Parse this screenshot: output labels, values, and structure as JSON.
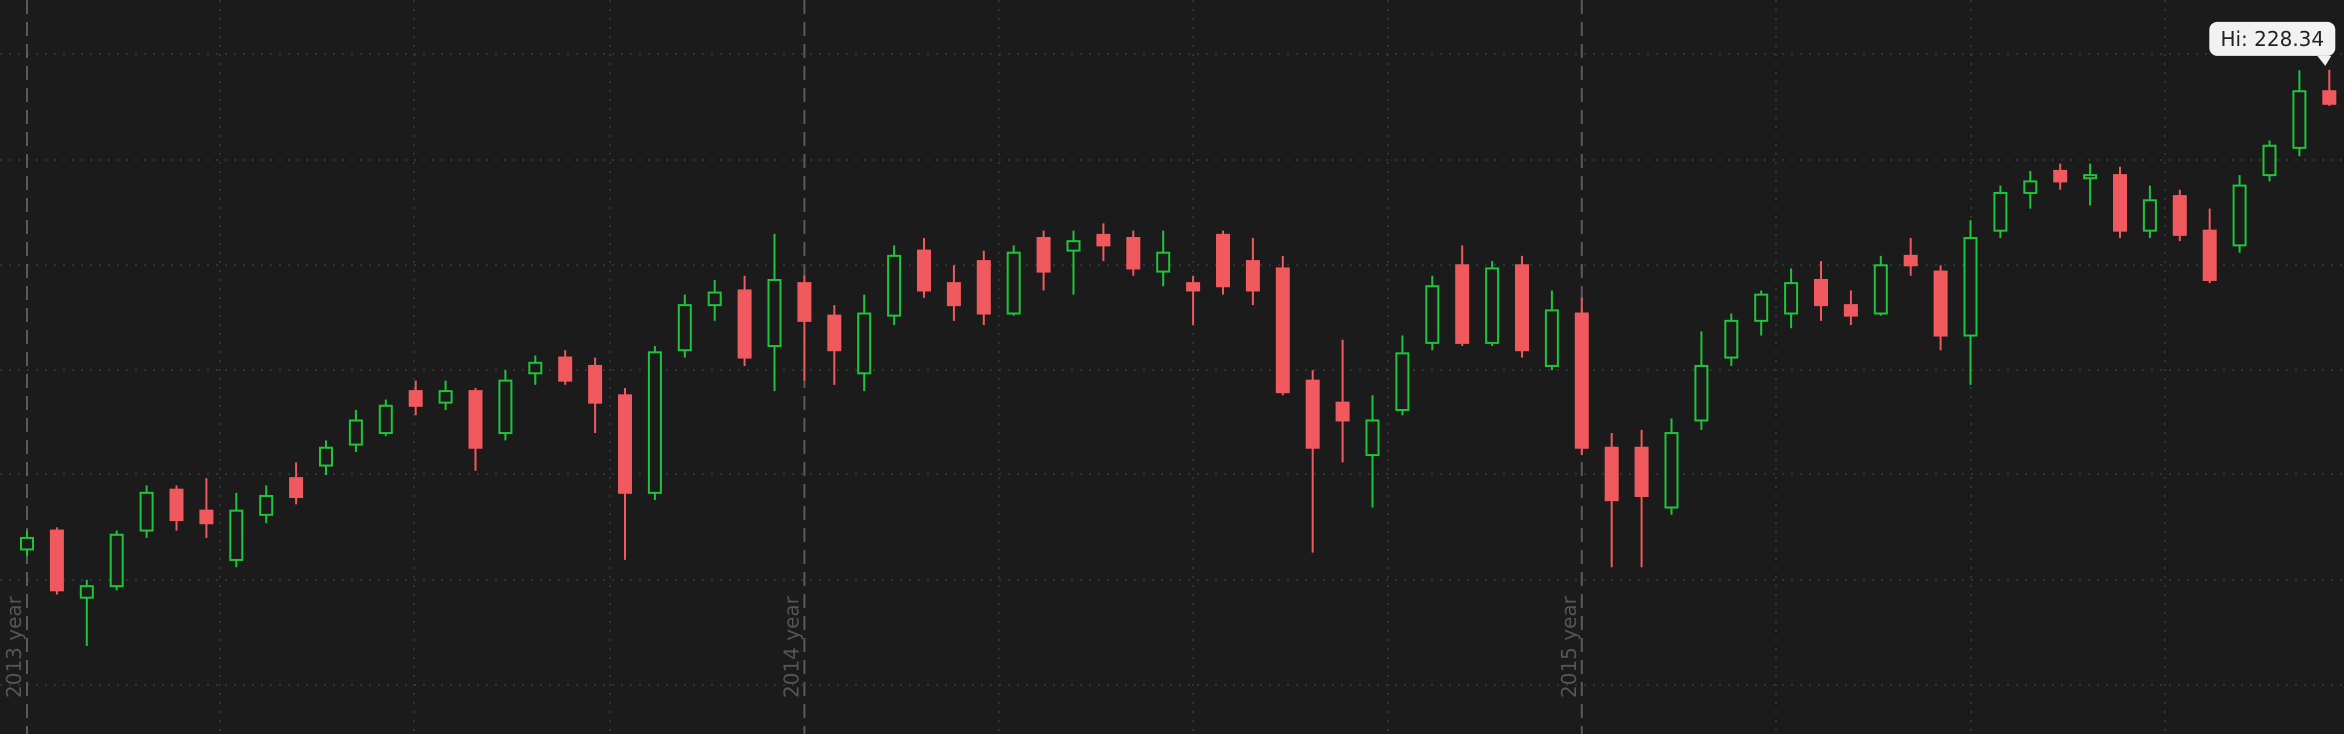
{
  "chart_data": {
    "type": "candlestick",
    "categories": [
      "2013 year",
      null,
      null,
      null,
      null,
      null,
      null,
      null,
      null,
      null,
      null,
      null,
      null,
      null,
      null,
      null,
      null,
      null,
      null,
      null,
      null,
      null,
      null,
      null,
      null,
      null,
      "2014 year",
      null,
      null,
      null,
      null,
      null,
      null,
      null,
      null,
      null,
      null,
      null,
      null,
      null,
      null,
      null,
      null,
      null,
      null,
      null,
      null,
      null,
      null,
      null,
      null,
      null,
      "2015 year",
      null,
      null,
      null,
      null,
      null,
      null,
      null,
      null,
      null,
      null,
      null,
      null,
      null,
      null,
      null,
      null,
      null,
      null,
      null,
      null,
      null,
      null,
      null,
      null,
      null
    ],
    "open": [
      182.6,
      184.4,
      178.0,
      179.1,
      184.4,
      188.3,
      186.3,
      181.6,
      185.9,
      189.4,
      190.6,
      192.6,
      193.7,
      197.7,
      196.6,
      197.7,
      193.7,
      199.4,
      200.9,
      200.1,
      197.3,
      188.0,
      201.6,
      205.9,
      207.3,
      202.0,
      208.0,
      204.9,
      199.4,
      204.9,
      211.1,
      208.0,
      210.1,
      205.1,
      212.3,
      211.1,
      212.6,
      212.3,
      209.1,
      208.0,
      212.6,
      210.1,
      209.4,
      198.7,
      196.6,
      191.6,
      195.9,
      202.3,
      209.7,
      202.3,
      209.7,
      200.1,
      205.1,
      192.3,
      192.3,
      186.6,
      194.9,
      200.9,
      204.4,
      205.1,
      208.3,
      205.9,
      205.1,
      210.6,
      209.1,
      203.0,
      213.0,
      216.6,
      218.7,
      218.0,
      218.3,
      213.0,
      216.3,
      213.0,
      211.6,
      218.3,
      220.9,
      226.3
    ],
    "high": [
      184.4,
      184.7,
      179.7,
      184.4,
      188.7,
      188.7,
      189.4,
      188.0,
      188.7,
      190.9,
      193.0,
      195.9,
      196.9,
      198.7,
      198.7,
      198.0,
      199.7,
      201.1,
      201.6,
      200.9,
      198.0,
      202.0,
      206.9,
      208.3,
      208.7,
      212.7,
      208.7,
      205.9,
      206.9,
      211.6,
      212.3,
      209.7,
      211.1,
      211.6,
      213.0,
      213.0,
      213.7,
      213.0,
      213.0,
      208.7,
      213.0,
      212.3,
      210.6,
      199.7,
      202.6,
      197.3,
      203.0,
      208.7,
      211.6,
      210.1,
      210.6,
      207.3,
      206.6,
      193.7,
      194.0,
      195.1,
      203.4,
      205.1,
      207.3,
      209.4,
      210.1,
      207.3,
      210.6,
      212.3,
      209.7,
      214.0,
      217.3,
      218.7,
      219.4,
      219.4,
      219.1,
      217.3,
      216.9,
      215.1,
      218.3,
      221.6,
      228.3,
      228.34
    ],
    "low": [
      182.0,
      178.3,
      173.4,
      178.7,
      183.7,
      184.4,
      183.7,
      180.9,
      185.1,
      186.9,
      189.7,
      191.9,
      193.4,
      195.4,
      195.9,
      190.1,
      193.0,
      198.3,
      198.3,
      193.7,
      181.6,
      187.3,
      200.9,
      204.4,
      200.1,
      197.7,
      198.7,
      198.3,
      197.7,
      204.0,
      206.6,
      204.4,
      204.0,
      204.9,
      207.3,
      206.9,
      210.1,
      208.7,
      207.7,
      204.0,
      206.9,
      205.9,
      197.3,
      182.3,
      190.9,
      186.6,
      195.4,
      201.6,
      202.0,
      202.0,
      200.9,
      199.7,
      191.6,
      180.9,
      180.9,
      185.9,
      194.0,
      200.1,
      203.0,
      203.7,
      204.4,
      204.0,
      204.9,
      208.7,
      201.6,
      198.3,
      212.3,
      215.1,
      216.9,
      215.4,
      212.3,
      212.3,
      212.0,
      208.0,
      210.9,
      217.7,
      220.1,
      224.9
    ],
    "close": [
      183.7,
      178.7,
      179.1,
      184.0,
      188.0,
      185.4,
      185.1,
      186.3,
      187.7,
      187.6,
      192.3,
      194.9,
      196.3,
      196.3,
      197.7,
      192.3,
      198.7,
      200.4,
      198.7,
      196.6,
      188.0,
      201.4,
      205.9,
      207.1,
      200.9,
      208.3,
      204.4,
      201.6,
      205.1,
      210.6,
      207.3,
      205.9,
      205.1,
      210.9,
      209.1,
      212.0,
      211.6,
      209.4,
      210.9,
      207.3,
      207.7,
      207.3,
      197.6,
      192.3,
      194.9,
      194.9,
      201.3,
      207.7,
      202.3,
      209.4,
      201.6,
      205.4,
      192.3,
      187.3,
      187.7,
      193.7,
      200.1,
      204.4,
      206.9,
      208.0,
      205.9,
      204.9,
      209.7,
      209.7,
      203.0,
      212.3,
      216.6,
      217.7,
      217.7,
      218.3,
      213.0,
      215.9,
      212.6,
      208.3,
      217.3,
      221.1,
      226.3,
      225.1
    ],
    "up_color": "#1fc43a",
    "down_color": "#f0595e",
    "ylim": [
      165,
      235
    ],
    "annotation": "Hi: 228.34"
  }
}
